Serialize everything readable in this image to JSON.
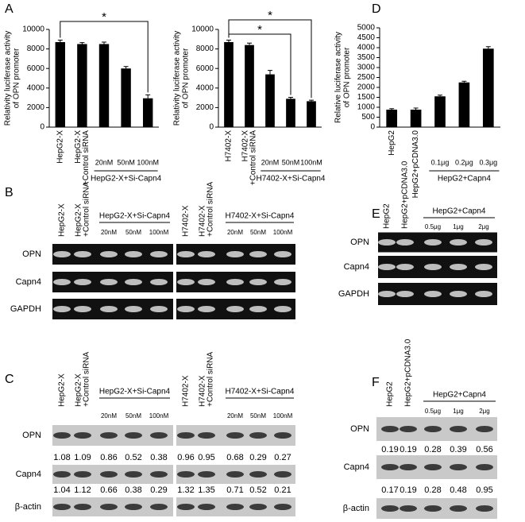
{
  "panel_letters": [
    "A",
    "D",
    "B",
    "C",
    "E",
    "F"
  ],
  "chart_data": [
    {
      "type": "bar",
      "ylabel": [
        "Relativity luciferase activity",
        "of OPN promoter"
      ],
      "categories": [
        [
          "HepG2-X"
        ],
        [
          "HepG2-X",
          "+Control siRNA"
        ],
        [
          "20nM"
        ],
        [
          "50nM"
        ],
        [
          "100nM"
        ]
      ],
      "group_label": "HepG2-X+Si-Capn4",
      "values": [
        8700,
        8500,
        8500,
        6000,
        2950
      ],
      "errors": [
        200,
        150,
        200,
        200,
        350
      ],
      "color": "#000000",
      "ylim": [
        0,
        10000
      ],
      "yticks": [
        0,
        2000,
        4000,
        6000,
        8000,
        10000
      ],
      "annotations": [
        "*"
      ]
    },
    {
      "type": "bar",
      "ylabel": [
        "Relativity luciferase activity",
        "of OPN promoter"
      ],
      "categories": [
        [
          "H7402-X"
        ],
        [
          "H7402-X",
          "+Control siRNA"
        ],
        [
          "20nM"
        ],
        [
          "50nM"
        ],
        [
          "100nM"
        ]
      ],
      "group_label": "H7402-X+Si-Capn4",
      "values": [
        8700,
        8400,
        5400,
        2900,
        2650
      ],
      "errors": [
        200,
        200,
        400,
        150,
        100
      ],
      "color": "#000000",
      "ylim": [
        0,
        10000
      ],
      "yticks": [
        0,
        2000,
        4000,
        6000,
        8000,
        10000
      ],
      "annotations": [
        "*",
        "*"
      ]
    },
    {
      "type": "bar",
      "ylabel": [
        "Relative luciferase activity",
        "of OPN promoter"
      ],
      "categories": [
        [
          "HepG2"
        ],
        [
          "HepG2+pCDNA3.0"
        ],
        [
          "0.1μg"
        ],
        [
          "0.2μg"
        ],
        [
          "0.3μg"
        ]
      ],
      "group_label": "HepG2+Capn4",
      "values": [
        880,
        880,
        1550,
        2250,
        3950
      ],
      "errors": [
        50,
        80,
        60,
        60,
        100
      ],
      "color": "#000000",
      "ylim": [
        0,
        5000
      ],
      "yticks": [
        0,
        500,
        1000,
        1500,
        2000,
        2500,
        3000,
        3500,
        4000,
        4500,
        5000
      ]
    }
  ],
  "blot_B": {
    "columns": [
      [
        "HepG2-X"
      ],
      [
        "HepG2-X",
        "+Control siRNA"
      ],
      [
        "20nM"
      ],
      [
        "50nM"
      ],
      [
        "100nM"
      ],
      [
        "H7402-X"
      ],
      [
        "H7402-X",
        "+Control siRNA"
      ],
      [
        "20nM"
      ],
      [
        "50nM"
      ],
      [
        "100nM"
      ]
    ],
    "groups": [
      "HepG2-X+Si-Capn4",
      "H7402-X+Si-Capn4"
    ],
    "rows": [
      "OPN",
      "Capn4",
      "GAPDH"
    ]
  },
  "blot_C": {
    "columns": [
      [
        "HepG2-X"
      ],
      [
        "HepG2-X",
        "+Control siRNA"
      ],
      [
        "20nM"
      ],
      [
        "50nM"
      ],
      [
        "100nM"
      ],
      [
        "H7402-X"
      ],
      [
        "H7402-X",
        "+Control siRNA"
      ],
      [
        "20nM"
      ],
      [
        "50nM"
      ],
      [
        "100nM"
      ]
    ],
    "groups": [
      "HepG2-X+Si-Capn4",
      "H7402-X+Si-Capn4"
    ],
    "rows": [
      "OPN",
      "Capn4",
      "β-actin"
    ],
    "ratios": [
      [
        1.08,
        1.09,
        0.86,
        0.52,
        0.38,
        0.96,
        0.95,
        0.68,
        0.29,
        0.27
      ],
      [
        1.04,
        1.12,
        0.66,
        0.38,
        0.29,
        1.32,
        1.35,
        0.71,
        0.52,
        0.21
      ]
    ]
  },
  "blot_E": {
    "columns": [
      [
        "HepG2"
      ],
      [
        "HepG2+pCDNA3.0"
      ],
      [
        "0.5μg"
      ],
      [
        "1μg"
      ],
      [
        "2μg"
      ]
    ],
    "groups": [
      "HepG2+Capn4"
    ],
    "rows": [
      "OPN",
      "Capn4",
      "GAPDH"
    ]
  },
  "blot_F": {
    "columns": [
      [
        "HepG2"
      ],
      [
        "HepG2+pCDNA3.0"
      ],
      [
        "0.5μg"
      ],
      [
        "1μg"
      ],
      [
        "2μg"
      ]
    ],
    "groups": [
      "HepG2+Capn4"
    ],
    "rows": [
      "OPN",
      "Capn4",
      "β-actin"
    ],
    "ratios": [
      [
        0.19,
        0.19,
        0.28,
        0.39,
        0.56
      ],
      [
        0.17,
        0.19,
        0.28,
        0.48,
        0.95
      ]
    ]
  }
}
